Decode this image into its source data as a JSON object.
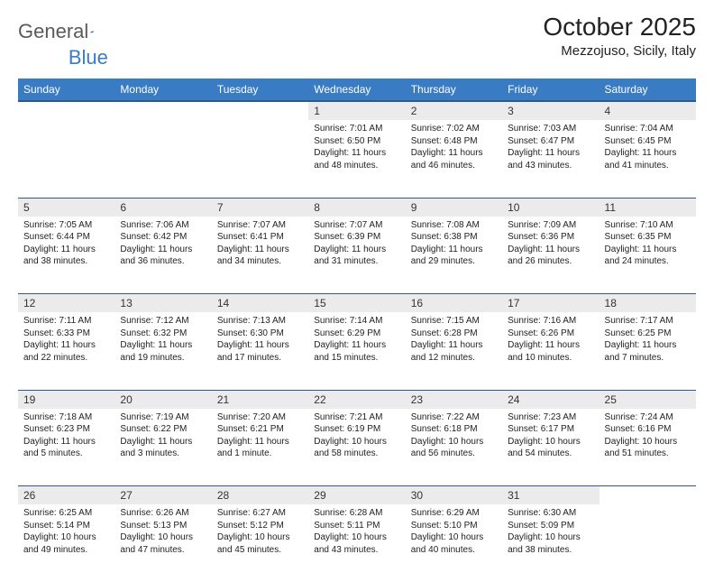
{
  "logo": {
    "text1": "General",
    "text2": "Blue"
  },
  "header": {
    "month_title": "October 2025",
    "location": "Mezzojuso, Sicily, Italy"
  },
  "colors": {
    "header_bg": "#3a7cc4",
    "header_border": "#2d5a8c",
    "daynum_bg": "#ebebeb",
    "page_bg": "#ffffff",
    "logo_gray": "#5a5a5a",
    "logo_blue": "#3a7cc4"
  },
  "weekdays": [
    "Sunday",
    "Monday",
    "Tuesday",
    "Wednesday",
    "Thursday",
    "Friday",
    "Saturday"
  ],
  "weeks": [
    {
      "nums": [
        "",
        "",
        "",
        "1",
        "2",
        "3",
        "4"
      ],
      "cells": [
        null,
        null,
        null,
        {
          "sunrise": "7:01 AM",
          "sunset": "6:50 PM",
          "daylight": "11 hours and 48 minutes."
        },
        {
          "sunrise": "7:02 AM",
          "sunset": "6:48 PM",
          "daylight": "11 hours and 46 minutes."
        },
        {
          "sunrise": "7:03 AM",
          "sunset": "6:47 PM",
          "daylight": "11 hours and 43 minutes."
        },
        {
          "sunrise": "7:04 AM",
          "sunset": "6:45 PM",
          "daylight": "11 hours and 41 minutes."
        }
      ]
    },
    {
      "nums": [
        "5",
        "6",
        "7",
        "8",
        "9",
        "10",
        "11"
      ],
      "cells": [
        {
          "sunrise": "7:05 AM",
          "sunset": "6:44 PM",
          "daylight": "11 hours and 38 minutes."
        },
        {
          "sunrise": "7:06 AM",
          "sunset": "6:42 PM",
          "daylight": "11 hours and 36 minutes."
        },
        {
          "sunrise": "7:07 AM",
          "sunset": "6:41 PM",
          "daylight": "11 hours and 34 minutes."
        },
        {
          "sunrise": "7:07 AM",
          "sunset": "6:39 PM",
          "daylight": "11 hours and 31 minutes."
        },
        {
          "sunrise": "7:08 AM",
          "sunset": "6:38 PM",
          "daylight": "11 hours and 29 minutes."
        },
        {
          "sunrise": "7:09 AM",
          "sunset": "6:36 PM",
          "daylight": "11 hours and 26 minutes."
        },
        {
          "sunrise": "7:10 AM",
          "sunset": "6:35 PM",
          "daylight": "11 hours and 24 minutes."
        }
      ]
    },
    {
      "nums": [
        "12",
        "13",
        "14",
        "15",
        "16",
        "17",
        "18"
      ],
      "cells": [
        {
          "sunrise": "7:11 AM",
          "sunset": "6:33 PM",
          "daylight": "11 hours and 22 minutes."
        },
        {
          "sunrise": "7:12 AM",
          "sunset": "6:32 PM",
          "daylight": "11 hours and 19 minutes."
        },
        {
          "sunrise": "7:13 AM",
          "sunset": "6:30 PM",
          "daylight": "11 hours and 17 minutes."
        },
        {
          "sunrise": "7:14 AM",
          "sunset": "6:29 PM",
          "daylight": "11 hours and 15 minutes."
        },
        {
          "sunrise": "7:15 AM",
          "sunset": "6:28 PM",
          "daylight": "11 hours and 12 minutes."
        },
        {
          "sunrise": "7:16 AM",
          "sunset": "6:26 PM",
          "daylight": "11 hours and 10 minutes."
        },
        {
          "sunrise": "7:17 AM",
          "sunset": "6:25 PM",
          "daylight": "11 hours and 7 minutes."
        }
      ]
    },
    {
      "nums": [
        "19",
        "20",
        "21",
        "22",
        "23",
        "24",
        "25"
      ],
      "cells": [
        {
          "sunrise": "7:18 AM",
          "sunset": "6:23 PM",
          "daylight": "11 hours and 5 minutes."
        },
        {
          "sunrise": "7:19 AM",
          "sunset": "6:22 PM",
          "daylight": "11 hours and 3 minutes."
        },
        {
          "sunrise": "7:20 AM",
          "sunset": "6:21 PM",
          "daylight": "11 hours and 1 minute."
        },
        {
          "sunrise": "7:21 AM",
          "sunset": "6:19 PM",
          "daylight": "10 hours and 58 minutes."
        },
        {
          "sunrise": "7:22 AM",
          "sunset": "6:18 PM",
          "daylight": "10 hours and 56 minutes."
        },
        {
          "sunrise": "7:23 AM",
          "sunset": "6:17 PM",
          "daylight": "10 hours and 54 minutes."
        },
        {
          "sunrise": "7:24 AM",
          "sunset": "6:16 PM",
          "daylight": "10 hours and 51 minutes."
        }
      ]
    },
    {
      "nums": [
        "26",
        "27",
        "28",
        "29",
        "30",
        "31",
        ""
      ],
      "cells": [
        {
          "sunrise": "6:25 AM",
          "sunset": "5:14 PM",
          "daylight": "10 hours and 49 minutes."
        },
        {
          "sunrise": "6:26 AM",
          "sunset": "5:13 PM",
          "daylight": "10 hours and 47 minutes."
        },
        {
          "sunrise": "6:27 AM",
          "sunset": "5:12 PM",
          "daylight": "10 hours and 45 minutes."
        },
        {
          "sunrise": "6:28 AM",
          "sunset": "5:11 PM",
          "daylight": "10 hours and 43 minutes."
        },
        {
          "sunrise": "6:29 AM",
          "sunset": "5:10 PM",
          "daylight": "10 hours and 40 minutes."
        },
        {
          "sunrise": "6:30 AM",
          "sunset": "5:09 PM",
          "daylight": "10 hours and 38 minutes."
        },
        null
      ]
    }
  ],
  "labels": {
    "sunrise": "Sunrise:",
    "sunset": "Sunset:",
    "daylight": "Daylight:"
  }
}
